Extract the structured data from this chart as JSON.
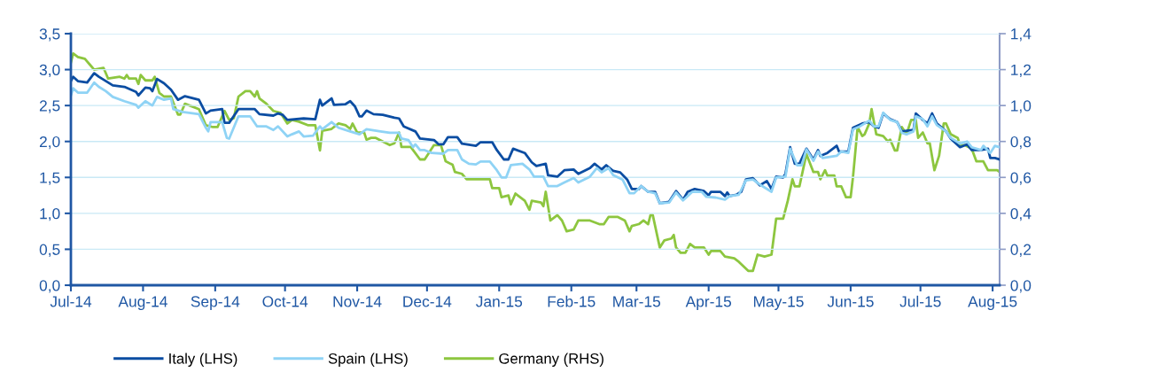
{
  "chart_data": {
    "type": "line",
    "grid": "y",
    "legend": "bottom",
    "xlim": [
      "2014-07-01",
      "2015-08-04"
    ],
    "xticks": [
      {
        "value": "2014-07-01",
        "label": "Jul-14"
      },
      {
        "value": "2014-08-01",
        "label": "Aug-14"
      },
      {
        "value": "2014-09-01",
        "label": "Sep-14"
      },
      {
        "value": "2014-10-01",
        "label": "Oct-14"
      },
      {
        "value": "2014-11-01",
        "label": "Nov-14"
      },
      {
        "value": "2014-12-01",
        "label": "Dec-14"
      },
      {
        "value": "2015-01-01",
        "label": "Jan-15"
      },
      {
        "value": "2015-02-01",
        "label": "Feb-15"
      },
      {
        "value": "2015-03-01",
        "label": "Mar-15"
      },
      {
        "value": "2015-04-01",
        "label": "Apr-15"
      },
      {
        "value": "2015-05-01",
        "label": "May-15"
      },
      {
        "value": "2015-06-01",
        "label": "Jun-15"
      },
      {
        "value": "2015-07-01",
        "label": "Jul-15"
      },
      {
        "value": "2015-08-01",
        "label": "Aug-15"
      }
    ],
    "ylim": [
      0,
      3.5
    ],
    "yticks": [
      {
        "value": 0,
        "label": "0,0"
      },
      {
        "value": 0.5,
        "label": "0,5"
      },
      {
        "value": 1,
        "label": "1,0"
      },
      {
        "value": 1.5,
        "label": "1,5"
      },
      {
        "value": 2,
        "label": "2,0"
      },
      {
        "value": 2.5,
        "label": "2,5"
      },
      {
        "value": 3,
        "label": "3,0"
      },
      {
        "value": 3.5,
        "label": "3,5"
      }
    ],
    "y2lim": [
      0,
      1.4
    ],
    "y2ticks": [
      {
        "value": 0,
        "label": "0,0"
      },
      {
        "value": 0.2,
        "label": "0,2"
      },
      {
        "value": 0.4,
        "label": "0,4"
      },
      {
        "value": 0.6,
        "label": "0,6"
      },
      {
        "value": 0.8,
        "label": "0,8"
      },
      {
        "value": 1,
        "label": "1,0"
      },
      {
        "value": 1.2,
        "label": "1,2"
      },
      {
        "value": 1.4,
        "label": "1,4"
      }
    ],
    "series": [
      {
        "name": "Italy (LHS)",
        "color": "#0b4da2",
        "axis": "y",
        "x": [
          "2014-07-01",
          "2014-07-02",
          "2014-07-04",
          "2014-07-08",
          "2014-07-11",
          "2014-07-13",
          "2014-07-19",
          "2014-07-24",
          "2014-07-29",
          "2014-07-30",
          "2014-08-02",
          "2014-08-04",
          "2014-08-05",
          "2014-08-07",
          "2014-08-10",
          "2014-08-13",
          "2014-08-16",
          "2014-08-19",
          "2014-08-25",
          "2014-08-28",
          "2014-08-30",
          "2014-09-04",
          "2014-09-05",
          "2014-09-07",
          "2014-09-11",
          "2014-09-18",
          "2014-09-20",
          "2014-09-26",
          "2014-09-28",
          "2014-09-30",
          "2014-10-02",
          "2014-10-09",
          "2014-10-14",
          "2014-10-16",
          "2014-10-17",
          "2014-10-21",
          "2014-10-22",
          "2014-10-27",
          "2014-10-29",
          "2014-10-31",
          "2014-11-02",
          "2014-11-03",
          "2014-11-05",
          "2014-11-08",
          "2014-11-12",
          "2014-11-17",
          "2014-11-19",
          "2014-11-21",
          "2014-11-26",
          "2014-11-28",
          "2014-12-04",
          "2014-12-06",
          "2014-12-08",
          "2014-12-10",
          "2014-12-14",
          "2014-12-16",
          "2014-12-22",
          "2014-12-24",
          "2014-12-29",
          "2014-12-31",
          "2015-01-03",
          "2015-01-05",
          "2015-01-07",
          "2015-01-12",
          "2015-01-15",
          "2015-01-17",
          "2015-01-21",
          "2015-01-22",
          "2015-01-26",
          "2015-01-29",
          "2015-02-02",
          "2015-02-04",
          "2015-02-09",
          "2015-02-11",
          "2015-02-14",
          "2015-02-16",
          "2015-02-19",
          "2015-02-22",
          "2015-02-25",
          "2015-02-27",
          "2015-03-02",
          "2015-03-03",
          "2015-03-06",
          "2015-03-09",
          "2015-03-11",
          "2015-03-15",
          "2015-03-18",
          "2015-03-21",
          "2015-03-23",
          "2015-03-26",
          "2015-03-30",
          "2015-04-01",
          "2015-04-02",
          "2015-04-06",
          "2015-04-08",
          "2015-04-09",
          "2015-04-10",
          "2015-04-13",
          "2015-04-15",
          "2015-04-17",
          "2015-04-20",
          "2015-04-23",
          "2015-04-26",
          "2015-04-28",
          "2015-04-30",
          "2015-05-03",
          "2015-05-04",
          "2015-05-06",
          "2015-05-08",
          "2015-05-10",
          "2015-05-13",
          "2015-05-16",
          "2015-05-18",
          "2015-05-19",
          "2015-05-22",
          "2015-05-26",
          "2015-05-27",
          "2015-05-31",
          "2015-06-02",
          "2015-06-06",
          "2015-06-09",
          "2015-06-11",
          "2015-06-13",
          "2015-06-15",
          "2015-06-18",
          "2015-06-21",
          "2015-06-23",
          "2015-06-28",
          "2015-06-29",
          "2015-07-02",
          "2015-07-04",
          "2015-07-06",
          "2015-07-08",
          "2015-07-12",
          "2015-07-14",
          "2015-07-18",
          "2015-07-21",
          "2015-07-23",
          "2015-07-27",
          "2015-07-30",
          "2015-07-31",
          "2015-08-02",
          "2015-08-04"
        ],
        "values": [
          2.84,
          2.9,
          2.84,
          2.82,
          2.95,
          2.9,
          2.78,
          2.76,
          2.69,
          2.64,
          2.75,
          2.74,
          2.7,
          2.87,
          2.81,
          2.72,
          2.58,
          2.63,
          2.58,
          2.39,
          2.43,
          2.45,
          2.26,
          2.26,
          2.45,
          2.45,
          2.38,
          2.36,
          2.39,
          2.37,
          2.3,
          2.32,
          2.31,
          2.58,
          2.5,
          2.6,
          2.51,
          2.52,
          2.56,
          2.49,
          2.35,
          2.35,
          2.43,
          2.38,
          2.37,
          2.33,
          2.32,
          2.21,
          2.14,
          2.04,
          2.02,
          1.96,
          1.96,
          2.06,
          2.06,
          1.97,
          1.94,
          1.99,
          1.99,
          1.88,
          1.75,
          1.75,
          1.9,
          1.84,
          1.71,
          1.66,
          1.69,
          1.53,
          1.51,
          1.6,
          1.61,
          1.55,
          1.63,
          1.69,
          1.61,
          1.67,
          1.59,
          1.57,
          1.47,
          1.34,
          1.34,
          1.38,
          1.3,
          1.3,
          1.14,
          1.16,
          1.31,
          1.19,
          1.3,
          1.34,
          1.31,
          1.25,
          1.3,
          1.3,
          1.24,
          1.29,
          1.24,
          1.26,
          1.3,
          1.47,
          1.49,
          1.39,
          1.45,
          1.34,
          1.51,
          1.5,
          1.55,
          1.92,
          1.69,
          1.69,
          1.9,
          1.75,
          1.88,
          1.8,
          1.84,
          1.94,
          1.86,
          1.86,
          2.19,
          2.25,
          2.27,
          2.21,
          2.19,
          2.39,
          2.31,
          2.27,
          2.14,
          2.16,
          2.39,
          2.3,
          2.25,
          2.39,
          2.25,
          2.14,
          2.04,
          1.92,
          1.96,
          1.88,
          1.88,
          1.9,
          1.77,
          1.77,
          1.75
        ]
      },
      {
        "name": "Spain (LHS)",
        "color": "#8fd3f5",
        "axis": "y",
        "x": [
          "2014-07-01",
          "2014-07-02",
          "2014-07-04",
          "2014-07-08",
          "2014-07-11",
          "2014-07-13",
          "2014-07-16",
          "2014-07-19",
          "2014-07-24",
          "2014-07-29",
          "2014-07-30",
          "2014-08-02",
          "2014-08-05",
          "2014-08-07",
          "2014-08-10",
          "2014-08-13",
          "2014-08-14",
          "2014-08-18",
          "2014-08-25",
          "2014-08-28",
          "2014-08-29",
          "2014-08-30",
          "2014-09-04",
          "2014-09-06",
          "2014-09-07",
          "2014-09-11",
          "2014-09-16",
          "2014-09-19",
          "2014-09-23",
          "2014-09-26",
          "2014-09-28",
          "2014-10-02",
          "2014-10-04",
          "2014-10-07",
          "2014-10-09",
          "2014-10-13",
          "2014-10-16",
          "2014-10-17",
          "2014-10-21",
          "2014-10-24",
          "2014-10-29",
          "2014-11-02",
          "2014-11-05",
          "2014-11-11",
          "2014-11-15",
          "2014-11-19",
          "2014-11-20",
          "2014-11-23",
          "2014-11-25",
          "2014-11-26",
          "2014-11-28",
          "2014-11-30",
          "2014-12-03",
          "2014-12-08",
          "2014-12-10",
          "2014-12-14",
          "2014-12-16",
          "2014-12-19",
          "2014-12-22",
          "2014-12-24",
          "2014-12-28",
          "2014-12-31",
          "2015-01-02",
          "2015-01-04",
          "2015-01-06",
          "2015-01-11",
          "2015-01-14",
          "2015-01-16",
          "2015-01-20",
          "2015-01-22",
          "2015-01-26",
          "2015-01-29",
          "2015-02-02",
          "2015-02-04",
          "2015-02-09",
          "2015-02-12",
          "2015-02-14",
          "2015-02-17",
          "2015-02-19",
          "2015-02-23",
          "2015-02-26",
          "2015-02-28",
          "2015-03-03",
          "2015-03-06",
          "2015-03-09",
          "2015-03-11",
          "2015-03-15",
          "2015-03-18",
          "2015-03-21",
          "2015-03-25",
          "2015-03-29",
          "2015-03-31",
          "2015-04-04",
          "2015-04-08",
          "2015-04-10",
          "2015-04-14",
          "2015-04-17",
          "2015-04-20",
          "2015-04-24",
          "2015-04-28",
          "2015-04-30",
          "2015-05-04",
          "2015-05-06",
          "2015-05-09",
          "2015-05-11",
          "2015-05-13",
          "2015-05-16",
          "2015-05-18",
          "2015-05-20",
          "2015-05-26",
          "2015-05-28",
          "2015-05-31",
          "2015-06-02",
          "2015-06-05",
          "2015-06-09",
          "2015-06-11",
          "2015-06-13",
          "2015-06-15",
          "2015-06-18",
          "2015-06-21",
          "2015-06-23",
          "2015-06-25",
          "2015-06-28",
          "2015-06-29",
          "2015-07-02",
          "2015-07-04",
          "2015-07-06",
          "2015-07-08",
          "2015-07-12",
          "2015-07-14",
          "2015-07-18",
          "2015-07-21",
          "2015-07-23",
          "2015-07-27",
          "2015-07-28",
          "2015-07-31",
          "2015-08-02",
          "2015-08-04"
        ],
        "values": [
          2.64,
          2.74,
          2.68,
          2.68,
          2.82,
          2.76,
          2.7,
          2.62,
          2.56,
          2.51,
          2.47,
          2.56,
          2.5,
          2.62,
          2.58,
          2.6,
          2.45,
          2.41,
          2.38,
          2.19,
          2.14,
          2.27,
          2.27,
          2.05,
          2.04,
          2.35,
          2.35,
          2.21,
          2.21,
          2.16,
          2.21,
          2.07,
          2.1,
          2.14,
          2.07,
          2.08,
          2.21,
          2.17,
          2.27,
          2.19,
          2.14,
          2.1,
          2.17,
          2.14,
          2.12,
          2.12,
          2.04,
          2.02,
          1.92,
          1.96,
          1.88,
          1.88,
          1.84,
          1.83,
          1.88,
          1.88,
          1.75,
          1.69,
          1.68,
          1.72,
          1.72,
          1.6,
          1.5,
          1.5,
          1.67,
          1.69,
          1.61,
          1.51,
          1.51,
          1.38,
          1.38,
          1.43,
          1.49,
          1.43,
          1.51,
          1.63,
          1.57,
          1.63,
          1.53,
          1.47,
          1.28,
          1.28,
          1.38,
          1.3,
          1.28,
          1.14,
          1.15,
          1.29,
          1.18,
          1.3,
          1.3,
          1.23,
          1.22,
          1.19,
          1.24,
          1.26,
          1.46,
          1.47,
          1.38,
          1.3,
          1.5,
          1.51,
          1.9,
          1.67,
          1.67,
          1.89,
          1.73,
          1.86,
          1.77,
          1.8,
          1.86,
          1.84,
          2.17,
          2.21,
          2.29,
          2.21,
          2.21,
          2.4,
          2.3,
          2.27,
          2.12,
          2.1,
          2.14,
          2.35,
          2.31,
          2.21,
          2.35,
          2.23,
          2.14,
          2.05,
          1.97,
          2.0,
          1.92,
          1.88,
          1.94,
          1.84,
          1.94,
          1.92
        ]
      },
      {
        "name": "Germany (RHS)",
        "color": "#8dc63f",
        "axis": "y2",
        "x": [
          "2014-07-01",
          "2014-07-02",
          "2014-07-04",
          "2014-07-07",
          "2014-07-09",
          "2014-07-11",
          "2014-07-15",
          "2014-07-17",
          "2014-07-22",
          "2014-07-24",
          "2014-07-25",
          "2014-07-26",
          "2014-07-29",
          "2014-07-30",
          "2014-07-31",
          "2014-08-02",
          "2014-08-05",
          "2014-08-06",
          "2014-08-08",
          "2014-08-10",
          "2014-08-13",
          "2014-08-16",
          "2014-08-17",
          "2014-08-19",
          "2014-08-21",
          "2014-08-25",
          "2014-08-28",
          "2014-08-31",
          "2014-09-02",
          "2014-09-05",
          "2014-09-07",
          "2014-09-09",
          "2014-09-11",
          "2014-09-14",
          "2014-09-16",
          "2014-09-18",
          "2014-09-19",
          "2014-09-20",
          "2014-09-23",
          "2014-09-26",
          "2014-09-29",
          "2014-10-02",
          "2014-10-04",
          "2014-10-07",
          "2014-10-11",
          "2014-10-14",
          "2014-10-16",
          "2014-10-17",
          "2014-10-21",
          "2014-10-24",
          "2014-10-27",
          "2014-10-29",
          "2014-10-30",
          "2014-11-01",
          "2014-11-04",
          "2014-11-05",
          "2014-11-07",
          "2014-11-09",
          "2014-11-15",
          "2014-11-17",
          "2014-11-19",
          "2014-11-20",
          "2014-11-24",
          "2014-11-28",
          "2014-11-30",
          "2014-12-04",
          "2014-12-07",
          "2014-12-09",
          "2014-12-12",
          "2014-12-13",
          "2014-12-16",
          "2014-12-18",
          "2014-12-23",
          "2014-12-28",
          "2014-12-29",
          "2015-01-01",
          "2015-01-02",
          "2015-01-05",
          "2015-01-06",
          "2015-01-08",
          "2015-01-10",
          "2015-01-12",
          "2015-01-14",
          "2015-01-15",
          "2015-01-19",
          "2015-01-20",
          "2015-01-21",
          "2015-01-23",
          "2015-01-26",
          "2015-01-28",
          "2015-01-30",
          "2015-02-02",
          "2015-02-04",
          "2015-02-09",
          "2015-02-13",
          "2015-02-15",
          "2015-02-17",
          "2015-02-21",
          "2015-02-24",
          "2015-02-26",
          "2015-02-27",
          "2015-03-02",
          "2015-03-04",
          "2015-03-06",
          "2015-03-07",
          "2015-03-08",
          "2015-03-11",
          "2015-03-13",
          "2015-03-16",
          "2015-03-17",
          "2015-03-18",
          "2015-03-20",
          "2015-03-22",
          "2015-03-24",
          "2015-03-26",
          "2015-03-29",
          "2015-03-30",
          "2015-04-01",
          "2015-04-02",
          "2015-04-06",
          "2015-04-08",
          "2015-04-12",
          "2015-04-14",
          "2015-04-18",
          "2015-04-20",
          "2015-04-22",
          "2015-04-25",
          "2015-04-28",
          "2015-04-30",
          "2015-05-03",
          "2015-05-05",
          "2015-05-07",
          "2015-05-08",
          "2015-05-10",
          "2015-05-13",
          "2015-05-16",
          "2015-05-18",
          "2015-05-19",
          "2015-05-21",
          "2015-05-22",
          "2015-05-25",
          "2015-05-26",
          "2015-05-28",
          "2015-05-30",
          "2015-06-01",
          "2015-06-02",
          "2015-06-04",
          "2015-06-06",
          "2015-06-07",
          "2015-06-09",
          "2015-06-10",
          "2015-06-12",
          "2015-06-15",
          "2015-06-17",
          "2015-06-18",
          "2015-06-20",
          "2015-06-21",
          "2015-06-23",
          "2015-06-25",
          "2015-06-27",
          "2015-06-29",
          "2015-06-30",
          "2015-07-02",
          "2015-07-04",
          "2015-07-05",
          "2015-07-07",
          "2015-07-09",
          "2015-07-11",
          "2015-07-12",
          "2015-07-14",
          "2015-07-17",
          "2015-07-18",
          "2015-07-20",
          "2015-07-23",
          "2015-07-25",
          "2015-07-28",
          "2015-07-30",
          "2015-08-03",
          "2015-08-04"
        ],
        "values": [
          1.24,
          1.29,
          1.27,
          1.26,
          1.23,
          1.2,
          1.21,
          1.15,
          1.16,
          1.15,
          1.17,
          1.15,
          1.15,
          1.12,
          1.17,
          1.14,
          1.14,
          1.16,
          1.07,
          1.05,
          1.05,
          0.95,
          0.95,
          1.01,
          1.0,
          0.98,
          0.89,
          0.88,
          0.88,
          0.97,
          0.92,
          0.93,
          1.05,
          1.08,
          1.08,
          1.05,
          1.08,
          1.04,
          1.01,
          0.97,
          0.96,
          0.9,
          0.92,
          0.91,
          0.89,
          0.89,
          0.75,
          0.86,
          0.87,
          0.9,
          0.89,
          0.87,
          0.9,
          0.85,
          0.85,
          0.81,
          0.82,
          0.82,
          0.78,
          0.79,
          0.85,
          0.77,
          0.77,
          0.7,
          0.7,
          0.78,
          0.78,
          0.69,
          0.67,
          0.63,
          0.62,
          0.59,
          0.59,
          0.59,
          0.54,
          0.54,
          0.49,
          0.5,
          0.45,
          0.51,
          0.49,
          0.47,
          0.42,
          0.47,
          0.46,
          0.44,
          0.52,
          0.36,
          0.39,
          0.36,
          0.3,
          0.31,
          0.36,
          0.36,
          0.34,
          0.34,
          0.38,
          0.38,
          0.36,
          0.3,
          0.33,
          0.34,
          0.36,
          0.34,
          0.39,
          0.39,
          0.21,
          0.25,
          0.26,
          0.28,
          0.21,
          0.18,
          0.18,
          0.23,
          0.21,
          0.21,
          0.21,
          0.17,
          0.19,
          0.19,
          0.16,
          0.15,
          0.13,
          0.08,
          0.08,
          0.17,
          0.16,
          0.17,
          0.37,
          0.37,
          0.47,
          0.59,
          0.55,
          0.55,
          0.73,
          0.63,
          0.63,
          0.59,
          0.64,
          0.61,
          0.61,
          0.55,
          0.55,
          0.49,
          0.49,
          0.6,
          0.88,
          0.83,
          0.84,
          0.9,
          0.98,
          0.84,
          0.83,
          0.8,
          0.81,
          0.75,
          0.75,
          0.88,
          0.84,
          0.92,
          0.92,
          0.82,
          0.85,
          0.79,
          0.79,
          0.64,
          0.72,
          0.9,
          0.9,
          0.84,
          0.82,
          0.78,
          0.78,
          0.76,
          0.69,
          0.69,
          0.64,
          0.64,
          0.63
        ]
      }
    ]
  }
}
